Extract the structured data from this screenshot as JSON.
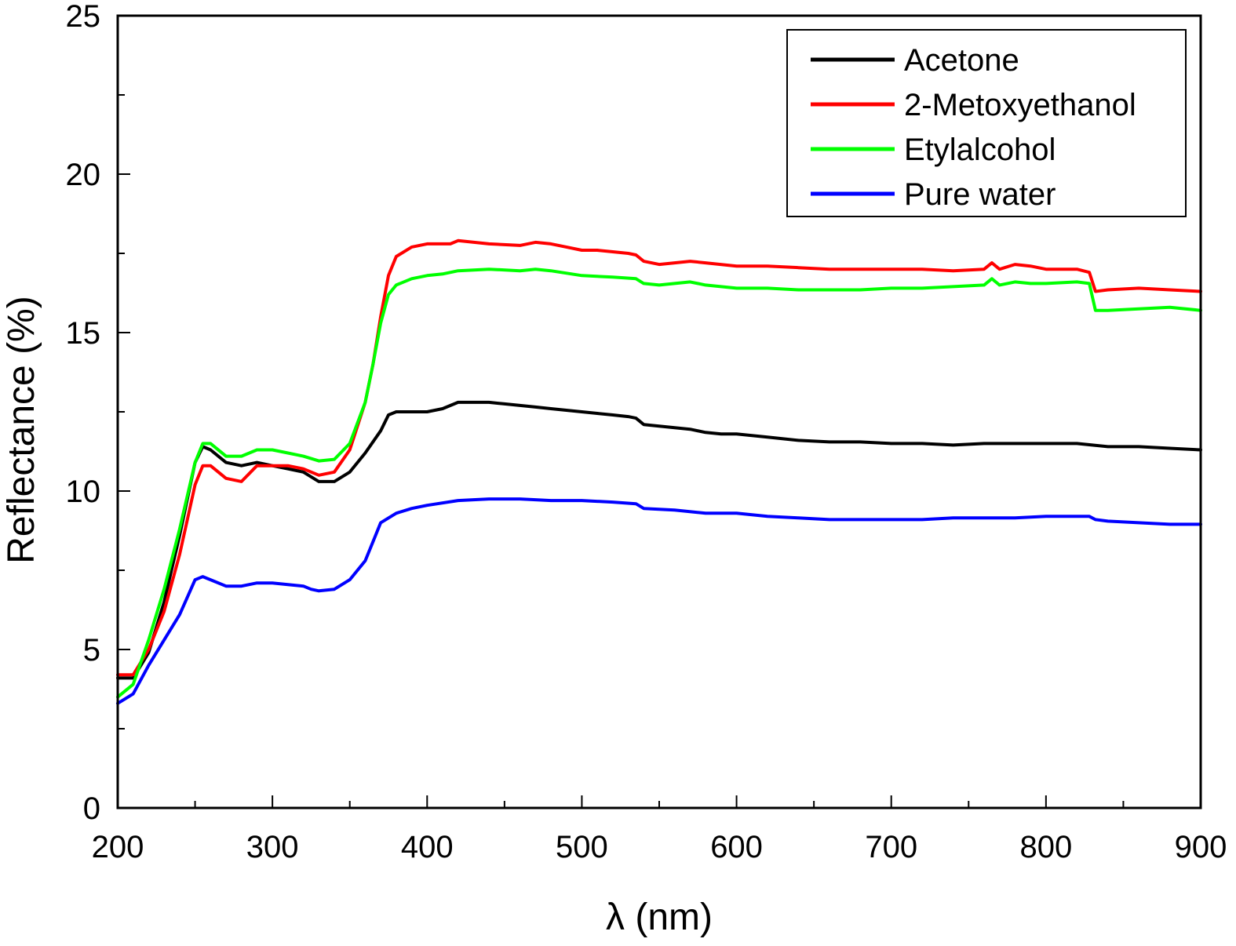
{
  "chart_data": {
    "type": "line",
    "xlabel": "λ (nm)",
    "ylabel": "Reflectance (%)",
    "xlim": [
      200,
      900
    ],
    "ylim": [
      0,
      25
    ],
    "x_ticks": [
      200,
      300,
      400,
      500,
      600,
      700,
      800,
      900
    ],
    "y_ticks": [
      0,
      5,
      10,
      15,
      20,
      25
    ],
    "grid": false,
    "legend_position": "top-right",
    "series": [
      {
        "name": "Acetone",
        "color": "#000000",
        "x": [
          200,
          210,
          220,
          230,
          240,
          250,
          255,
          260,
          270,
          280,
          290,
          300,
          310,
          320,
          330,
          340,
          350,
          360,
          370,
          375,
          380,
          390,
          400,
          410,
          420,
          430,
          440,
          450,
          460,
          470,
          480,
          490,
          500,
          510,
          520,
          530,
          535,
          540,
          550,
          560,
          570,
          580,
          590,
          600,
          620,
          640,
          660,
          680,
          700,
          720,
          740,
          760,
          780,
          800,
          820,
          830,
          840,
          860,
          880,
          900
        ],
        "y": [
          4.1,
          4.1,
          4.9,
          6.5,
          8.6,
          10.9,
          11.4,
          11.3,
          10.9,
          10.8,
          10.9,
          10.8,
          10.7,
          10.6,
          10.3,
          10.3,
          10.6,
          11.2,
          11.9,
          12.4,
          12.5,
          12.5,
          12.5,
          12.6,
          12.8,
          12.8,
          12.8,
          12.75,
          12.7,
          12.65,
          12.6,
          12.55,
          12.5,
          12.45,
          12.4,
          12.35,
          12.3,
          12.1,
          12.05,
          12.0,
          11.95,
          11.85,
          11.8,
          11.8,
          11.7,
          11.6,
          11.55,
          11.55,
          11.5,
          11.5,
          11.45,
          11.5,
          11.5,
          11.5,
          11.5,
          11.45,
          11.4,
          11.4,
          11.35,
          11.3
        ]
      },
      {
        "name": "2-Metoxyethanol",
        "color": "#ff0000",
        "x": [
          200,
          210,
          220,
          230,
          240,
          250,
          255,
          260,
          270,
          280,
          290,
          300,
          310,
          320,
          330,
          340,
          350,
          360,
          365,
          370,
          375,
          380,
          390,
          400,
          410,
          415,
          420,
          440,
          460,
          470,
          480,
          490,
          500,
          510,
          520,
          530,
          535,
          540,
          550,
          560,
          570,
          580,
          600,
          620,
          640,
          660,
          680,
          700,
          720,
          740,
          760,
          765,
          770,
          780,
          790,
          800,
          820,
          828,
          832,
          840,
          860,
          880,
          900
        ],
        "y": [
          4.2,
          4.2,
          5.0,
          6.2,
          8.0,
          10.2,
          10.8,
          10.8,
          10.4,
          10.3,
          10.8,
          10.8,
          10.8,
          10.7,
          10.5,
          10.6,
          11.3,
          12.8,
          14.0,
          15.5,
          16.8,
          17.4,
          17.7,
          17.8,
          17.8,
          17.8,
          17.9,
          17.8,
          17.75,
          17.85,
          17.8,
          17.7,
          17.6,
          17.6,
          17.55,
          17.5,
          17.45,
          17.25,
          17.15,
          17.2,
          17.25,
          17.2,
          17.1,
          17.1,
          17.05,
          17.0,
          17.0,
          17.0,
          17.0,
          16.95,
          17.0,
          17.2,
          17.0,
          17.15,
          17.1,
          17.0,
          17.0,
          16.9,
          16.3,
          16.35,
          16.4,
          16.35,
          16.3
        ]
      },
      {
        "name": "Etylalcohol",
        "color": "#00ff00",
        "x": [
          200,
          210,
          220,
          230,
          240,
          250,
          255,
          260,
          270,
          280,
          290,
          300,
          310,
          320,
          330,
          340,
          350,
          360,
          365,
          370,
          375,
          380,
          390,
          400,
          410,
          420,
          440,
          460,
          470,
          480,
          500,
          520,
          535,
          540,
          550,
          560,
          570,
          580,
          600,
          620,
          640,
          660,
          680,
          700,
          720,
          740,
          760,
          765,
          770,
          780,
          790,
          800,
          820,
          828,
          832,
          840,
          860,
          880,
          900
        ],
        "y": [
          3.5,
          3.9,
          5.3,
          6.9,
          8.8,
          10.9,
          11.5,
          11.5,
          11.1,
          11.1,
          11.3,
          11.3,
          11.2,
          11.1,
          10.95,
          11.0,
          11.5,
          12.8,
          14.0,
          15.3,
          16.2,
          16.5,
          16.7,
          16.8,
          16.85,
          16.95,
          17.0,
          16.95,
          17.0,
          16.95,
          16.8,
          16.75,
          16.7,
          16.55,
          16.5,
          16.55,
          16.6,
          16.5,
          16.4,
          16.4,
          16.35,
          16.35,
          16.35,
          16.4,
          16.4,
          16.45,
          16.5,
          16.7,
          16.5,
          16.6,
          16.55,
          16.55,
          16.6,
          16.55,
          15.7,
          15.7,
          15.75,
          15.8,
          15.7
        ]
      },
      {
        "name": "Pure water",
        "color": "#0000ff",
        "x": [
          200,
          210,
          220,
          230,
          240,
          250,
          255,
          260,
          270,
          280,
          290,
          300,
          310,
          320,
          325,
          330,
          340,
          350,
          360,
          365,
          370,
          380,
          390,
          400,
          420,
          440,
          460,
          480,
          500,
          520,
          535,
          540,
          560,
          580,
          600,
          620,
          640,
          660,
          680,
          700,
          720,
          740,
          760,
          780,
          800,
          820,
          828,
          832,
          840,
          860,
          880,
          900
        ],
        "y": [
          3.3,
          3.6,
          4.5,
          5.3,
          6.1,
          7.2,
          7.3,
          7.2,
          7.0,
          7.0,
          7.1,
          7.1,
          7.05,
          7.0,
          6.9,
          6.85,
          6.9,
          7.2,
          7.8,
          8.4,
          9.0,
          9.3,
          9.45,
          9.55,
          9.7,
          9.75,
          9.75,
          9.7,
          9.7,
          9.65,
          9.6,
          9.45,
          9.4,
          9.3,
          9.3,
          9.2,
          9.15,
          9.1,
          9.1,
          9.1,
          9.1,
          9.15,
          9.15,
          9.15,
          9.2,
          9.2,
          9.2,
          9.1,
          9.05,
          9.0,
          8.95,
          8.95
        ]
      }
    ]
  }
}
